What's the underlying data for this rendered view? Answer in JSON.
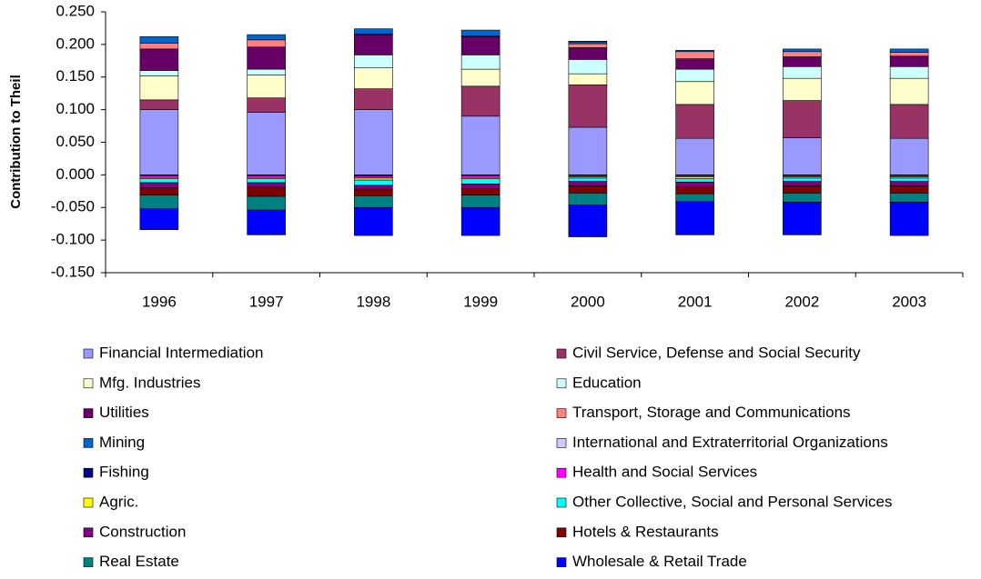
{
  "chart_data": {
    "type": "stacked_bar",
    "y_label": "Contribution to Theil",
    "categories": [
      "1996",
      "1997",
      "1998",
      "1999",
      "2000",
      "2001",
      "2002",
      "2003"
    ],
    "ylim": [
      -0.15,
      0.25
    ],
    "yticks": [
      {
        "value": 0.25,
        "label": "0.250"
      },
      {
        "value": 0.2,
        "label": "0.200"
      },
      {
        "value": 0.15,
        "label": "0.150"
      },
      {
        "value": 0.1,
        "label": "0.100"
      },
      {
        "value": 0.05,
        "label": "0.050"
      },
      {
        "value": 0,
        "label": "0.000"
      },
      {
        "value": -0.05,
        "label": "-0.050"
      },
      {
        "value": -0.1,
        "label": "-0.100"
      },
      {
        "value": -0.15,
        "label": "-0.150"
      }
    ],
    "series": [
      {
        "name": "Financial Intermediation",
        "color": "#9999FF",
        "values": [
          0.1,
          0.096,
          0.1,
          0.09,
          0.073,
          0.056,
          0.057,
          0.056
        ]
      },
      {
        "name": "Civil Service, Defense and Social Security",
        "color": "#993366",
        "values": [
          0.015,
          0.022,
          0.032,
          0.046,
          0.065,
          0.052,
          0.057,
          0.052
        ]
      },
      {
        "name": "Mfg.  Industries",
        "color": "#FFFFCC",
        "values": [
          0.037,
          0.035,
          0.032,
          0.026,
          0.017,
          0.035,
          0.034,
          0.04
        ]
      },
      {
        "name": "Education",
        "color": "#CCFFFF",
        "values": [
          0.008,
          0.009,
          0.02,
          0.022,
          0.022,
          0.019,
          0.018,
          0.018
        ]
      },
      {
        "name": "Utilities",
        "color": "#660066",
        "values": [
          0.033,
          0.034,
          0.031,
          0.028,
          0.018,
          0.016,
          0.015,
          0.016
        ]
      },
      {
        "name": "Transport, Storage and Communications",
        "color": "#FF8080",
        "values": [
          0.009,
          0.011,
          0.001,
          0.001,
          0.006,
          0.011,
          0.008,
          0.006
        ]
      },
      {
        "name": "Mining",
        "color": "#0066CC",
        "values": [
          0.01,
          0.008,
          0.008,
          0.009,
          0.003,
          0.002,
          0.004,
          0.005
        ]
      },
      {
        "name": "International and Extraterritorial Organizations",
        "color": "#CCCCFF",
        "values": [
          0,
          0,
          0,
          0,
          0.001,
          0,
          0,
          0
        ]
      },
      {
        "name": "Fishing",
        "color": "#000080",
        "values": [
          -0.001,
          -0.001,
          -0.002,
          -0.001,
          -0.001,
          -0.001,
          -0.001,
          -0.001
        ]
      },
      {
        "name": "Health and Social Services",
        "color": "#FF00FF",
        "values": [
          -0.003,
          -0.003,
          -0.003,
          -0.003,
          -0.002,
          -0.002,
          -0.002,
          -0.002
        ]
      },
      {
        "name": "Agric.",
        "color": "#FFFF00",
        "values": [
          -0.002,
          -0.002,
          -0.003,
          -0.002,
          -0.002,
          -0.003,
          -0.002,
          -0.002
        ]
      },
      {
        "name": "Other Collective, Social and Personal Services",
        "color": "#00FFFF",
        "values": [
          -0.006,
          -0.006,
          -0.008,
          -0.008,
          -0.005,
          -0.005,
          -0.005,
          -0.005
        ]
      },
      {
        "name": "Construction",
        "color": "#800080",
        "values": [
          -0.008,
          -0.007,
          -0.006,
          -0.007,
          -0.007,
          -0.007,
          -0.007,
          -0.007
        ]
      },
      {
        "name": "Hotels & Restaurants",
        "color": "#800000",
        "values": [
          -0.011,
          -0.014,
          -0.01,
          -0.01,
          -0.011,
          -0.011,
          -0.011,
          -0.011
        ]
      },
      {
        "name": "Real Estate",
        "color": "#008080",
        "values": [
          -0.021,
          -0.021,
          -0.018,
          -0.019,
          -0.018,
          -0.012,
          -0.014,
          -0.014
        ]
      },
      {
        "name": "Wholesale & Retail Trade",
        "color": "#0000FF",
        "values": [
          -0.032,
          -0.038,
          -0.043,
          -0.043,
          -0.049,
          -0.051,
          -0.05,
          -0.051
        ]
      }
    ]
  }
}
